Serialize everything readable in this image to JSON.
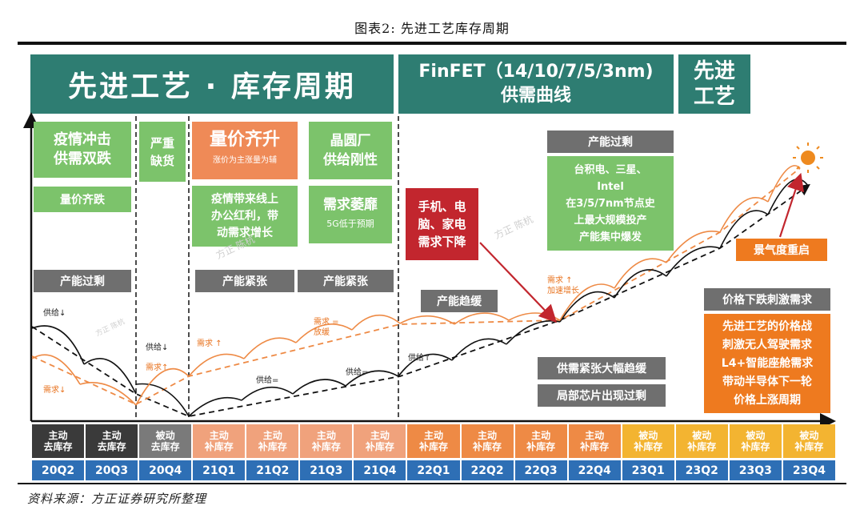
{
  "figure_title": "图表2:  先进工艺库存周期",
  "source": "资料来源：方正证券研究所整理",
  "headers": {
    "left": "先进工艺 · 库存周期",
    "mid_line1": "FinFET（14/10/7/5/3nm)",
    "mid_line2": "供需曲线",
    "right_line1": "先进",
    "right_line2": "工艺"
  },
  "boxes": {
    "epidemic_line1": "疫情冲击",
    "epidemic_line2": "供需双跌",
    "vol_price_fall": "量价齐跌",
    "severe_line1": "严重",
    "severe_line2": "缺货",
    "vol_price_rise": "量价齐升",
    "vol_price_rise_sub": "涨价为主涨量为辅",
    "wafer_line1": "晶圆厂",
    "wafer_line2": "供给刚性",
    "dividend_line1": "疫情带来线上",
    "dividend_line2": "办公红利，带",
    "dividend_line3": "动需求增长",
    "demand_weak": "需求萎靡",
    "demand_weak_sub": "5G低于预期",
    "phone_line1": "手机、电",
    "phone_line2": "脑、家电",
    "phone_line3": "需求下降",
    "overcap_top": "产能过剩",
    "tsmc_line1": "台积电、三星、",
    "tsmc_line2": "Intel",
    "tsmc_line3": "在3/5/7nm节点史",
    "tsmc_line4": "上最大规模投产",
    "tsmc_line5": "产能集中爆发",
    "restart": "景气度重启",
    "price_fall": "价格下跌刺激需求",
    "war_line1": "先进工艺的价格战",
    "war_line2": "刺激无人驾驶需求",
    "war_line3": "L4+智能座舱需求",
    "war_line4": "带动半导体下一轮",
    "war_line5": "价格上涨周期"
  },
  "states": {
    "overcap": "产能过剩",
    "tight1": "产能紧张",
    "tight2": "产能紧张",
    "easing": "产能趋缓",
    "easing_big": "供需紧张大幅趋缓",
    "local_over": "局部芯片出现过剩"
  },
  "annotations": {
    "supply_down": "供给↓",
    "demand_down": "需求↓",
    "supply_down2": "供给↓",
    "demand_up": "需求↑",
    "demand_up2": "需求 ↑",
    "demand_eq_line1": "需求 =",
    "demand_eq_line2": "放缓",
    "supply_eq1": "供给=",
    "supply_eq2": "供给=",
    "supply_up": "供给↑",
    "demand_up3_line1": "需求 ↑",
    "demand_up3_line2": "加速增长"
  },
  "watermark": "方正 陈杭",
  "timeline": {
    "stages": [
      {
        "line1": "主动",
        "line2": "去库存",
        "color": "#3a3a3a"
      },
      {
        "line1": "主动",
        "line2": "去库存",
        "color": "#3a3a3a"
      },
      {
        "line1": "被动",
        "line2": "去库存",
        "color": "#7a7a7a"
      },
      {
        "line1": "主动",
        "line2": "补库存",
        "color": "#f0a27c"
      },
      {
        "line1": "主动",
        "line2": "补库存",
        "color": "#f0a27c"
      },
      {
        "line1": "主动",
        "line2": "补库存",
        "color": "#f0a27c"
      },
      {
        "line1": "主动",
        "line2": "补库存",
        "color": "#f0a27c"
      },
      {
        "line1": "主动",
        "line2": "补库存",
        "color": "#ee8a45"
      },
      {
        "line1": "主动",
        "line2": "补库存",
        "color": "#ee8a45"
      },
      {
        "line1": "主动",
        "line2": "补库存",
        "color": "#ee8a45"
      },
      {
        "line1": "主动",
        "line2": "补库存",
        "color": "#ee8a45"
      },
      {
        "line1": "被动",
        "line2": "补库存",
        "color": "#f3b431"
      },
      {
        "line1": "被动",
        "line2": "补库存",
        "color": "#f3b431"
      },
      {
        "line1": "被动",
        "line2": "补库存",
        "color": "#f3b431"
      },
      {
        "line1": "被动",
        "line2": "补库存",
        "color": "#f3b431"
      }
    ],
    "quarters": [
      "20Q2",
      "20Q3",
      "20Q4",
      "21Q1",
      "21Q2",
      "21Q3",
      "21Q4",
      "22Q1",
      "22Q2",
      "22Q3",
      "22Q4",
      "23Q1",
      "23Q2",
      "23Q3",
      "23Q4"
    ]
  }
}
